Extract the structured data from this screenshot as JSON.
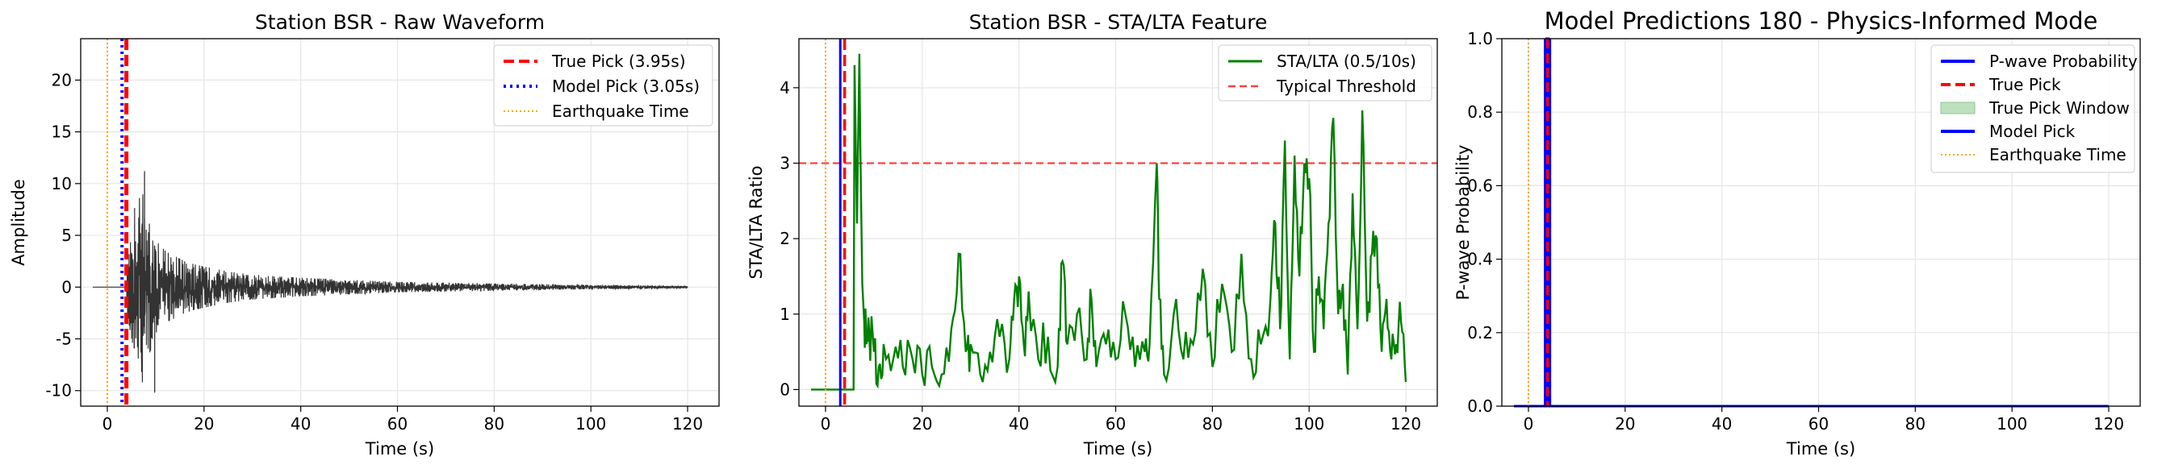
{
  "chart_data": [
    {
      "type": "line",
      "title": "Station BSR - Raw Waveform",
      "xlabel": "Time (s)",
      "ylabel": "Amplitude",
      "xlim": [
        -5.5,
        126.5
      ],
      "ylim": [
        -11.5,
        24.0
      ],
      "xticks": [
        0,
        20,
        40,
        60,
        80,
        100,
        120
      ],
      "yticks": [
        -10,
        -5,
        0,
        5,
        10,
        15,
        20
      ],
      "grid": true,
      "legend_position": "top-right",
      "legend": [
        {
          "label": "True Pick (3.95s)",
          "color": "#ff0000",
          "style": "dashed"
        },
        {
          "label": "Model Pick (3.05s)",
          "color": "#0000ff",
          "style": "dotted"
        },
        {
          "label": "Earthquake Time",
          "color": "#ffa500",
          "style": "dotted-thin"
        }
      ],
      "vlines": {
        "true_pick": 3.95,
        "model_pick": 3.05,
        "earthquake_time": 0.0
      },
      "series": [
        {
          "style": "waveform",
          "color": "#333333",
          "x": [
            -3,
            3.9,
            4.5,
            5.0,
            5.5,
            6.0,
            6.5,
            7.0,
            7.5,
            8.0,
            8.5,
            9.0,
            9.5,
            10.0,
            11.0,
            12.0,
            13.0,
            14.0,
            16.0,
            18.0,
            20.0,
            25.0,
            30.0,
            40.0,
            50.0,
            60.0,
            80.0,
            100.0,
            120.0
          ],
          "envelope": [
            0,
            0,
            5.2,
            4.5,
            9.0,
            4.5,
            7.5,
            11.2,
            8.0,
            5.5,
            6.0,
            6.5,
            4.0,
            4.5,
            4.0,
            3.5,
            3.2,
            3.0,
            2.5,
            2.2,
            2.0,
            1.5,
            1.2,
            0.9,
            0.7,
            0.5,
            0.35,
            0.2,
            0.1
          ]
        }
      ]
    },
    {
      "type": "line",
      "title": "Station BSR - STA/LTA Feature",
      "xlabel": "Time (s)",
      "ylabel": "STA/LTA Ratio",
      "xlim": [
        -5.5,
        126.5
      ],
      "ylim": [
        -0.22,
        4.65
      ],
      "xticks": [
        0,
        20,
        40,
        60,
        80,
        100,
        120
      ],
      "yticks": [
        0,
        1,
        2,
        3,
        4
      ],
      "grid": true,
      "legend_position": "top-right",
      "legend": [
        {
          "label": "STA/LTA (0.5/10s)",
          "color": "#008000",
          "style": "solid"
        },
        {
          "label": "Typical Threshold",
          "color": "#ff4040",
          "style": "dashed"
        }
      ],
      "threshold": 3.0,
      "vlines": {
        "true_pick": 3.95,
        "model_pick": 3.05,
        "earthquake_time": 0.0
      },
      "series": [
        {
          "name": "STA/LTA (0.5/10s)",
          "color": "#008000",
          "x": [
            -3,
            5.8,
            6.0,
            6.5,
            7.0,
            7.2,
            7.6,
            8.0,
            8.5,
            9.0,
            10,
            11,
            12,
            14,
            16,
            18,
            20,
            22,
            24,
            26,
            27.5,
            29,
            30,
            32,
            34,
            36,
            38,
            39,
            40,
            41,
            42,
            44,
            46,
            48,
            49,
            50,
            52,
            54,
            55,
            56,
            58,
            60,
            62,
            64,
            66,
            67,
            68.5,
            69,
            70,
            72,
            74,
            76,
            78,
            80,
            82,
            84,
            86,
            88,
            90,
            92,
            93,
            94,
            95,
            96,
            97,
            98,
            99,
            100,
            101,
            102,
            103,
            104,
            105,
            106,
            107,
            108,
            109,
            110,
            111,
            112,
            113,
            114,
            115,
            116,
            117,
            118,
            119,
            120
          ],
          "y": [
            0,
            0,
            4.3,
            2.2,
            4.45,
            3.2,
            1.4,
            0.9,
            0.6,
            0.8,
            0.5,
            0.3,
            0.6,
            0.4,
            0.3,
            0.4,
            0.2,
            0.3,
            0.2,
            0.8,
            1.8,
            0.5,
            0.6,
            0.2,
            0.5,
            0.7,
            0.4,
            1.2,
            1.5,
            0.6,
            1.3,
            0.4,
            0.7,
            0.3,
            1.7,
            0.6,
            1.0,
            0.4,
            1.2,
            0.3,
            0.6,
            0.4,
            1.0,
            0.3,
            0.5,
            0.6,
            3.0,
            1.2,
            0.2,
            1.0,
            0.4,
            0.6,
            1.6,
            0.3,
            1.4,
            0.5,
            1.8,
            0.4,
            0.6,
            1.2,
            2.2,
            0.8,
            3.3,
            0.4,
            3.1,
            1.5,
            3.0,
            2.8,
            0.5,
            1.5,
            0.8,
            2.2,
            3.6,
            1.0,
            1.4,
            0.2,
            2.6,
            0.8,
            3.7,
            0.9,
            1.8,
            2.0,
            0.5,
            1.2,
            0.4,
            0.6,
            0.9,
            0.1
          ]
        }
      ]
    },
    {
      "type": "line",
      "title": "Model Predictions 180 - Physics-Informed Mode",
      "xlabel": "Time (s)",
      "ylabel": "P-wave Probability",
      "xlim": [
        -5.5,
        126.5
      ],
      "ylim": [
        0.0,
        1.0
      ],
      "xticks": [
        0,
        20,
        40,
        60,
        80,
        100,
        120
      ],
      "yticks": [
        0.0,
        0.2,
        0.4,
        0.6,
        0.8,
        1.0
      ],
      "grid": true,
      "legend_position": "top-right",
      "legend": [
        {
          "label": "P-wave Probability",
          "color": "#0000ff",
          "style": "solid"
        },
        {
          "label": "True Pick",
          "color": "#ff0000",
          "style": "dashed"
        },
        {
          "label": "True Pick Window",
          "color": "#008000",
          "style": "patch"
        },
        {
          "label": "Model Pick",
          "color": "#0000ff",
          "style": "solid"
        },
        {
          "label": "Earthquake Time",
          "color": "#ffa500",
          "style": "dotted-thin"
        }
      ],
      "true_pick_window": [
        3.7,
        4.2
      ],
      "vlines": {
        "true_pick": 3.95,
        "model_pick": 3.95,
        "earthquake_time": 0.0
      },
      "series": [
        {
          "name": "P-wave Probability",
          "color": "#0000ff",
          "x": [
            -3,
            3.7,
            3.75,
            4.15,
            4.2,
            120
          ],
          "y": [
            0,
            0,
            1.0,
            1.0,
            0,
            0
          ]
        }
      ]
    }
  ]
}
